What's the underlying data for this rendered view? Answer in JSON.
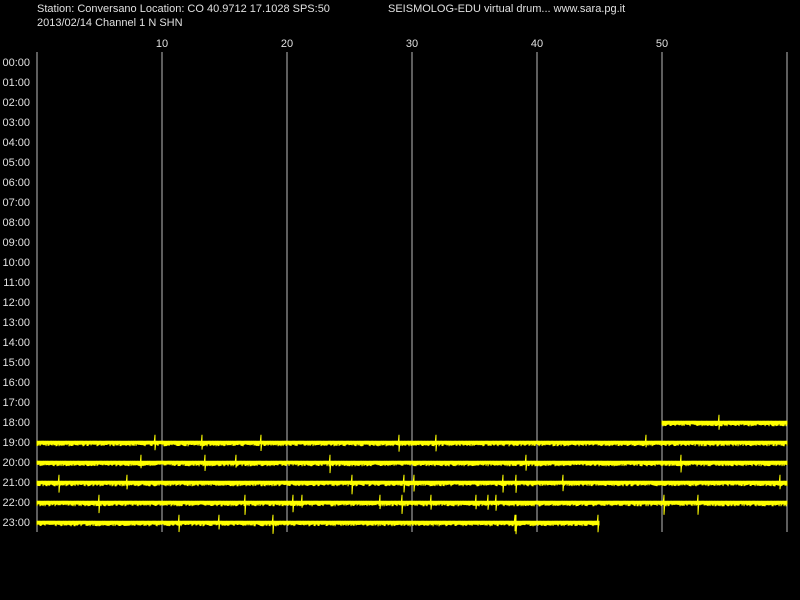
{
  "header": {
    "station": "Station: Conversano Location: CO 40.9712 17.1028 SPS:50",
    "program": "SEISMOLOG-EDU virtual drum... www.sara.pg.it",
    "channel": "2013/02/14  Channel 1 N SHN"
  },
  "minute_axis": {
    "range": [
      0,
      60
    ],
    "ticks": [
      10,
      20,
      30,
      40,
      50
    ]
  },
  "hours": [
    "00:00",
    "01:00",
    "02:00",
    "03:00",
    "04:00",
    "05:00",
    "06:00",
    "07:00",
    "08:00",
    "09:00",
    "10:00",
    "11:00",
    "12:00",
    "13:00",
    "14:00",
    "15:00",
    "16:00",
    "17:00",
    "18:00",
    "19:00",
    "20:00",
    "21:00",
    "22:00",
    "23:00"
  ],
  "traces": [
    {
      "hour": 18,
      "start": 50,
      "end": 60
    },
    {
      "hour": 19,
      "start": 0,
      "end": 60
    },
    {
      "hour": 20,
      "start": 0,
      "end": 60
    },
    {
      "hour": 21,
      "start": 0,
      "end": 60
    },
    {
      "hour": 22,
      "start": 0,
      "end": 60
    },
    {
      "hour": 23,
      "start": 0,
      "end": 45
    }
  ]
}
